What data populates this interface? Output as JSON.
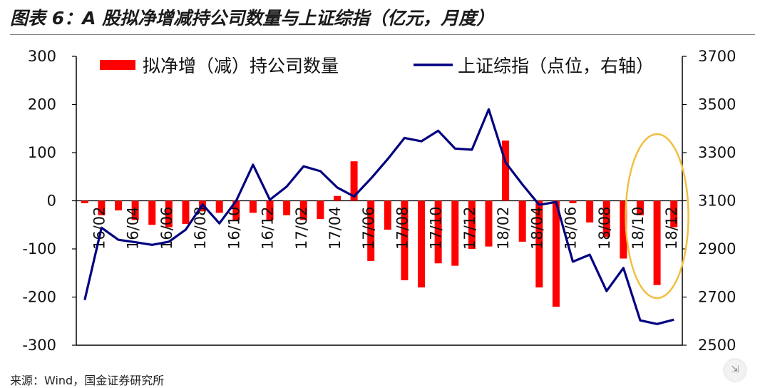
{
  "header": {
    "title": "图表 6：A 股拟净增减持公司数量与上证综指（亿元，月度）"
  },
  "source_note": "来源：Wind，国金证券研究所",
  "chart_data": {
    "type": "bar+line",
    "categories": [
      "16/01",
      "16/02",
      "16/03",
      "16/04",
      "16/05",
      "16/06",
      "16/07",
      "16/08",
      "16/09",
      "16/10",
      "16/11",
      "16/12",
      "17/01",
      "17/02",
      "17/03",
      "17/04",
      "17/05",
      "17/06",
      "17/07",
      "17/08",
      "17/09",
      "17/10",
      "17/11",
      "17/12",
      "18/01",
      "18/02",
      "18/03",
      "18/04",
      "18/05",
      "18/06",
      "18/07",
      "18/08",
      "18/09",
      "18/10",
      "18/11",
      "18/12"
    ],
    "x_tick_labels": [
      "16/02",
      "16/04",
      "16/06",
      "16/08",
      "16/10",
      "16/12",
      "17/02",
      "17/04",
      "17/06",
      "17/08",
      "17/10",
      "17/12",
      "18/02",
      "18/04",
      "18/06",
      "18/08",
      "18/10",
      "18/12"
    ],
    "series": [
      {
        "name": "拟净增（减）持公司数量",
        "type": "bar",
        "axis": "left",
        "color": "#ff0000",
        "values": [
          -5,
          -30,
          -20,
          -40,
          -50,
          -55,
          -48,
          -22,
          -25,
          -40,
          -25,
          -40,
          -30,
          -40,
          -38,
          10,
          82,
          -125,
          -60,
          -165,
          -180,
          -130,
          -135,
          -100,
          -95,
          125,
          -85,
          -180,
          -220,
          -5,
          -45,
          -75,
          -120,
          -30,
          -175,
          -55
        ]
      },
      {
        "name": "上证综指（点位，右轴）",
        "type": "line",
        "axis": "right",
        "color": "#000080",
        "values": [
          2688,
          2988,
          2938,
          2928,
          2917,
          2930,
          2980,
          3085,
          3006,
          3100,
          3250,
          3104,
          3159,
          3243,
          3223,
          3155,
          3118,
          3192,
          3273,
          3361,
          3347,
          3391,
          3317,
          3312,
          3480,
          3259,
          3168,
          3083,
          3095,
          2847,
          2876,
          2725,
          2821,
          2603,
          2588,
          2606
        ]
      }
    ],
    "left_axis": {
      "ylim": [
        -300,
        300
      ],
      "ticks": [
        "300",
        "200",
        "100",
        "0",
        "-100",
        "-200",
        "-300"
      ]
    },
    "right_axis": {
      "ylim": [
        2500,
        3700
      ],
      "ticks": [
        "3700",
        "3500",
        "3300",
        "3100",
        "2900",
        "2700",
        "2500"
      ]
    },
    "legend": {
      "position": "top"
    },
    "annotation": {
      "type": "ellipse",
      "color": "#f0c040",
      "around": [
        "18/10",
        "18/11",
        "18/12"
      ]
    },
    "grid": false
  }
}
